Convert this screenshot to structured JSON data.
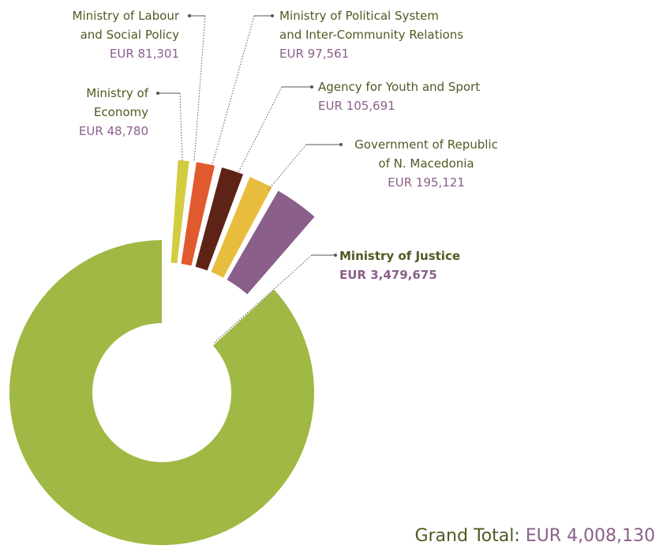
{
  "chart_data": {
    "type": "donut",
    "categories": [
      "Ministry of Justice",
      "Ministry of\nEconomy",
      "Ministry of Labour\nand Social Policy",
      "Ministry of Political System\nand Inter-Community Relations",
      "Agency for Youth and Sport",
      "Government of Republic\nof N. Macedonia"
    ],
    "values": [
      3479675,
      48780,
      81301,
      97561,
      105691,
      195121
    ],
    "value_labels": [
      "EUR 3,479,675",
      "EUR 48,780",
      "EUR 81,301",
      "EUR 97,561",
      "EUR 105,691",
      "EUR 195,121"
    ],
    "colors": [
      "#a0b844",
      "#d2cc3f",
      "#e05a2e",
      "#5c2316",
      "#e8bd3e",
      "#8a5f8a"
    ],
    "total_label": "Grand Total:",
    "total_value_label": "EUR 4,008,130"
  }
}
